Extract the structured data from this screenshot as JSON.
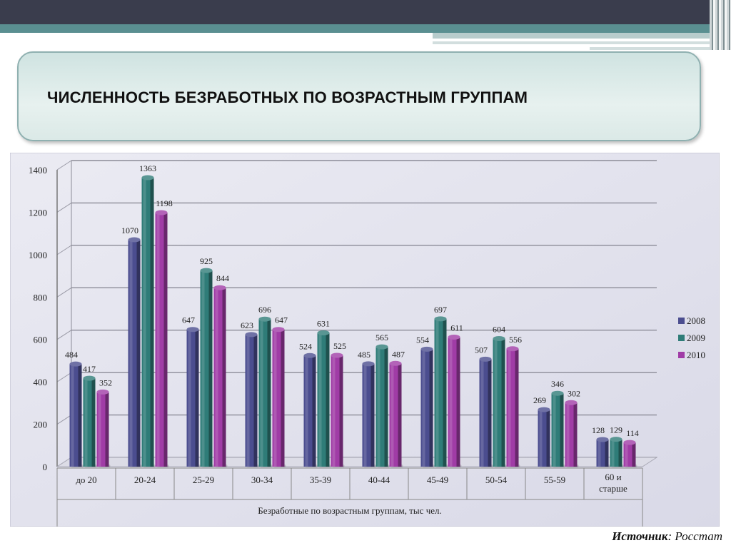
{
  "slide": {
    "title": "ЧИСЛЕННОСТЬ БЕЗРАБОТНЫХ  ПО ВОЗРАСТНЫМ ГРУППАМ",
    "source_label": "Источник",
    "source_value": ": Росстат"
  },
  "colors": {
    "accent_dark": "#3a3d4d",
    "accent_teal": "#5a8f91",
    "series_2008": "#4b4d8f",
    "series_2009": "#2f7c78",
    "series_2010": "#a03ca6"
  },
  "chart_data": {
    "type": "bar",
    "title": "",
    "xlabel": "Безработные по возрастным группам, тыс чел.",
    "ylabel": "",
    "ylim": [
      0,
      1400
    ],
    "yticks": [
      0,
      200,
      400,
      600,
      800,
      1000,
      1200,
      1400
    ],
    "grid": true,
    "legend_position": "right",
    "categories": [
      [
        "до 20"
      ],
      [
        "20-24"
      ],
      [
        "25-29"
      ],
      [
        "30-34"
      ],
      [
        "35-39"
      ],
      [
        "40-44"
      ],
      [
        "45-49"
      ],
      [
        "50-54"
      ],
      [
        "55-59"
      ],
      [
        "60 и",
        "старше"
      ]
    ],
    "series": [
      {
        "name": "2008",
        "color": "#4b4d8f",
        "values": [
          484,
          1070,
          647,
          623,
          524,
          485,
          554,
          507,
          269,
          128
        ]
      },
      {
        "name": "2009",
        "color": "#2f7c78",
        "values": [
          417,
          1363,
          925,
          696,
          631,
          565,
          697,
          604,
          346,
          129
        ]
      },
      {
        "name": "2010",
        "color": "#a03ca6",
        "values": [
          352,
          1198,
          844,
          647,
          525,
          487,
          611,
          556,
          302,
          114
        ]
      }
    ]
  }
}
